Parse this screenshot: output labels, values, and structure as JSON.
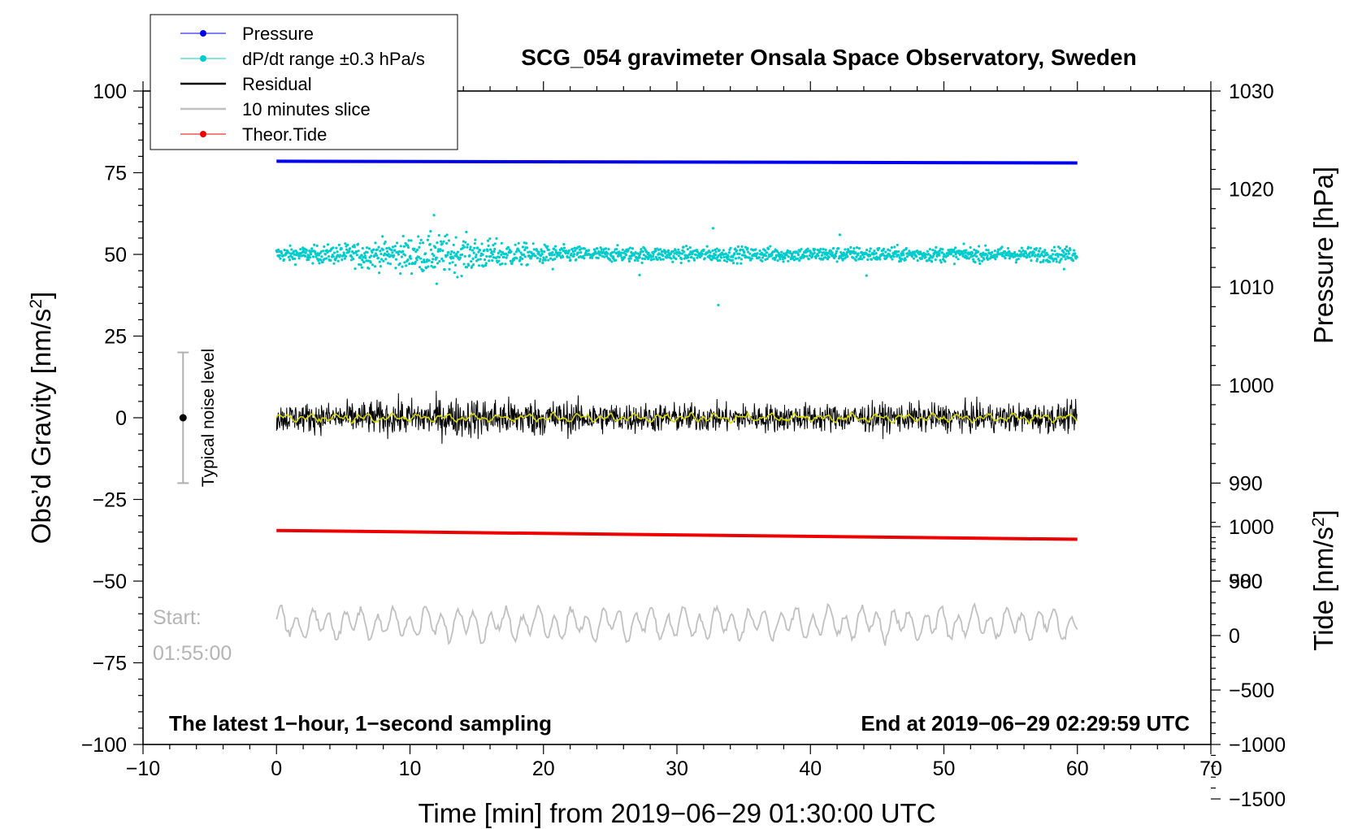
{
  "chart_data": {
    "type": "line",
    "title": "SCG_054 gravimeter Onsala Space Observatory, Sweden",
    "xlabel": "Time [min] from 2019−06−29 01:30:00 UTC",
    "ylabel_main": "Obs’d Gravity [nm/s",
    "ylabel_main_sup": "2",
    "ylabel_main_end": "]",
    "ylabel_pressure": "Pressure [hPa]",
    "ylabel_tide": "Tide [nm/s",
    "ylabel_tide_sup": "2",
    "ylabel_tide_end": "]",
    "xlim": [
      -10,
      70
    ],
    "ylim": [
      -100,
      100
    ],
    "pressure_lim": [
      980,
      1030
    ],
    "tide_lim": [
      -1500,
      1000
    ],
    "x_ticks": [
      -10,
      0,
      10,
      20,
      30,
      40,
      50,
      60,
      70
    ],
    "x_tick_labels": [
      "−10",
      "0",
      "10",
      "20",
      "30",
      "40",
      "50",
      "60",
      "70"
    ],
    "y_ticks": [
      100,
      75,
      50,
      25,
      0,
      -25,
      -50,
      -75,
      -100
    ],
    "y_tick_labels": [
      "100",
      "75",
      "50",
      "25",
      "0",
      "−25",
      "−50",
      "−75",
      "−100"
    ],
    "pressure_ticks": [
      1030,
      1020,
      1010,
      1000,
      990,
      980
    ],
    "pressure_tick_labels": [
      "1030",
      "1020",
      "1010",
      "1000",
      "990",
      "980"
    ],
    "tide_ticks": [
      1000,
      500,
      0,
      -500,
      -1000,
      -1500
    ],
    "tide_tick_labels": [
      "1000",
      "500",
      "0",
      "−500",
      "−1000",
      "−1500"
    ],
    "legend": [
      {
        "label": "Pressure",
        "color": "#0000ee",
        "marker": "dot"
      },
      {
        "label": "dP/dt range ±0.3 hPa/s",
        "color": "#00cccc",
        "marker": "dot"
      },
      {
        "label": "Residual",
        "color": "#000000",
        "marker": "line"
      },
      {
        "label": "10 minutes slice",
        "color": "#c0c0c0",
        "marker": "line"
      },
      {
        "label": "Theor.Tide",
        "color": "#ee0000",
        "marker": "dot"
      }
    ],
    "legend_position": "top-left",
    "noise_bar": {
      "x": -7,
      "center": 0,
      "low": -20,
      "high": 20,
      "label": "Typical noise level"
    },
    "annotations": {
      "start_line1": "Start:",
      "start_line2": "01:55:00",
      "bottom_left": "The latest 1−hour, 1−second sampling",
      "bottom_right": "End at 2019−06−29 02:29:59 UTC"
    },
    "series": [
      {
        "name": "Pressure",
        "color": "#0000ee",
        "level": 78.5,
        "level_end": 78.0,
        "units": "plot offset"
      },
      {
        "name": "dP/dt range",
        "color": "#00cccc",
        "level": 50,
        "spread": 2.5,
        "units": "plot offset"
      },
      {
        "name": "Residual",
        "color": "#000000",
        "level": 0,
        "amplitude": 4,
        "units": "nm/s2"
      },
      {
        "name": "Residual smoothed",
        "color": "#d8d800",
        "level": 0,
        "amplitude": 1.5,
        "units": "nm/s2"
      },
      {
        "name": "Theor.Tide",
        "color": "#ee0000",
        "level": -34.5,
        "level_end": -37.2,
        "units": "plot offset"
      },
      {
        "name": "10 minutes slice",
        "color": "#c0c0c0",
        "level": -63,
        "amplitude": 5,
        "units": "plot offset"
      }
    ],
    "x_range_data": [
      0,
      60
    ]
  }
}
